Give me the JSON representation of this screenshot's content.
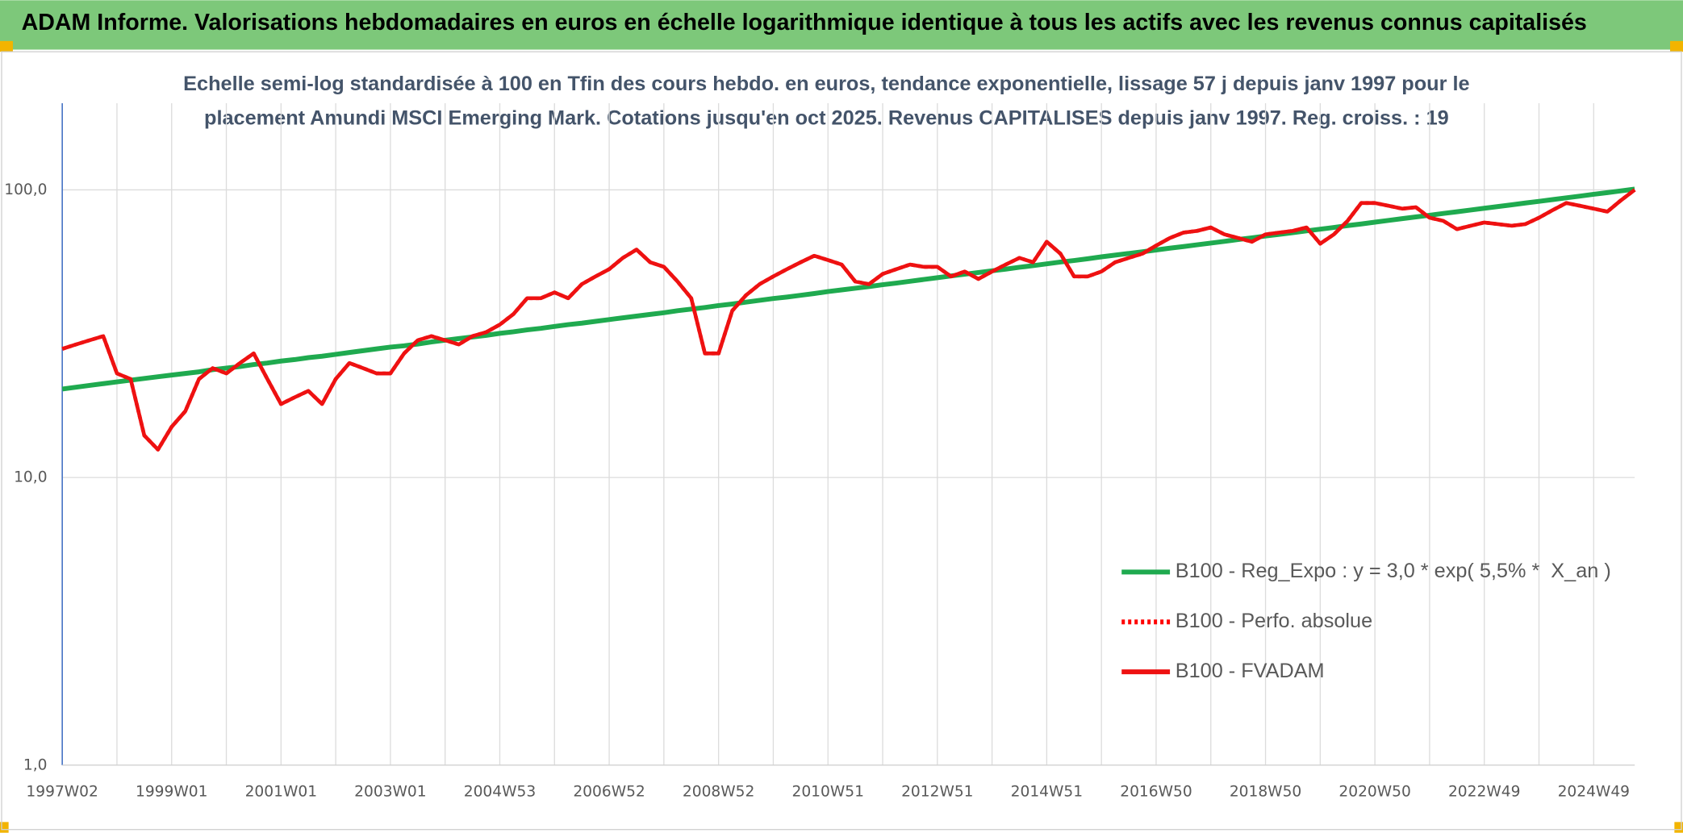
{
  "header": "ADAM Informe. Valorisations hebdomadaires en euros en échelle logarithmique identique à tous les actifs avec les revenus connus capitalisés",
  "chart_data": {
    "type": "line",
    "title": "Echelle semi-log standardisée à 100 en Tfin des cours hebdo. en euros, tendance exponentielle, lissage 57 j depuis janv 1997 pour le placement Amundi MSCI Emerging Mark. Cotations jusqu'en oct 2025. Revenus CAPITALISES depuis janv 1997. Reg. croiss. : 19",
    "log_scale": true,
    "grid": true,
    "ylim": [
      1,
      200
    ],
    "yticks": [
      {
        "value": 1,
        "label": "1,0"
      },
      {
        "value": 10,
        "label": "10,0"
      },
      {
        "value": 100,
        "label": "100,0"
      }
    ],
    "categories": [
      "1997W02",
      null,
      null,
      null,
      null,
      null,
      null,
      null,
      "1999W01",
      null,
      null,
      null,
      null,
      null,
      null,
      null,
      "2001W01",
      null,
      null,
      null,
      null,
      null,
      null,
      null,
      "2003W01",
      null,
      null,
      null,
      null,
      null,
      null,
      null,
      "2004W53",
      null,
      null,
      null,
      null,
      null,
      null,
      null,
      "2006W52",
      null,
      null,
      null,
      null,
      null,
      null,
      null,
      "2008W52",
      null,
      null,
      null,
      null,
      null,
      null,
      null,
      "2010W51",
      null,
      null,
      null,
      null,
      null,
      null,
      null,
      "2012W51",
      null,
      null,
      null,
      null,
      null,
      null,
      null,
      "2014W51",
      null,
      null,
      null,
      null,
      null,
      null,
      null,
      "2016W50",
      null,
      null,
      null,
      null,
      null,
      null,
      null,
      "2018W50",
      null,
      null,
      null,
      null,
      null,
      null,
      null,
      "2020W50",
      null,
      null,
      null,
      null,
      null,
      null,
      null,
      "2022W49",
      null,
      null,
      null,
      null,
      null,
      null,
      null,
      "2024W49",
      null,
      null,
      null
    ],
    "series": [
      {
        "name": "B100 - Reg_Expo : y = 3,0 * exp( 5,5% *  X_an )",
        "color": "#1faa4f",
        "line_style": "solid",
        "values": [
          20.3,
          20.6,
          20.9,
          21.2,
          21.5,
          21.8,
          22.1,
          22.4,
          22.7,
          23.0,
          23.3,
          23.7,
          24.0,
          24.3,
          24.7,
          25.0,
          25.4,
          25.7,
          26.1,
          26.4,
          26.8,
          27.2,
          27.6,
          28.0,
          28.4,
          28.7,
          29.1,
          29.6,
          30.0,
          30.4,
          30.8,
          31.2,
          31.7,
          32.1,
          32.6,
          33.0,
          33.5,
          34.0,
          34.4,
          34.9,
          35.4,
          35.9,
          36.4,
          36.9,
          37.4,
          38.0,
          38.5,
          39.0,
          39.6,
          40.1,
          40.7,
          41.3,
          41.9,
          42.4,
          43.0,
          43.6,
          44.3,
          44.9,
          45.5,
          46.1,
          46.8,
          47.4,
          48.1,
          48.8,
          49.5,
          50.2,
          50.9,
          51.6,
          52.3,
          53.0,
          53.8,
          54.5,
          55.3,
          56.1,
          56.8,
          57.6,
          58.5,
          59.3,
          60.1,
          60.9,
          61.8,
          62.7,
          63.5,
          64.4,
          65.3,
          66.2,
          67.2,
          68.1,
          69.1,
          70.0,
          71.0,
          72.0,
          73.0,
          74.0,
          75.1,
          76.1,
          77.2,
          78.3,
          79.4,
          80.5,
          81.6,
          82.8,
          83.9,
          85.1,
          86.3,
          87.5,
          88.7,
          90.0,
          91.2,
          92.5,
          93.8,
          95.1,
          96.5,
          97.8,
          99.2,
          100.6
        ]
      },
      {
        "name": "B100 - Perfo. absolue",
        "color": "#ff0000",
        "line_style": "dotted",
        "values": [
          28,
          29,
          30,
          31,
          23,
          22,
          14,
          12.5,
          15,
          17,
          22,
          24,
          23,
          25,
          27,
          22,
          18,
          19,
          20,
          18,
          22,
          25,
          24,
          23,
          23,
          27,
          30,
          31,
          30,
          29,
          31,
          32,
          34,
          37,
          42,
          42,
          44,
          42,
          47,
          50,
          53,
          58,
          62,
          56,
          54,
          48,
          42,
          27,
          27,
          38,
          43,
          47,
          50,
          53,
          56,
          59,
          57,
          55,
          48,
          47,
          51,
          53,
          55,
          54,
          54,
          50,
          52,
          49,
          52,
          55,
          58,
          56,
          66,
          60,
          50,
          50,
          52,
          56,
          58,
          60,
          64,
          68,
          71,
          72,
          74,
          70,
          68,
          66,
          70,
          71,
          72,
          74,
          65,
          70,
          78,
          90,
          90,
          88,
          86,
          87,
          80,
          78,
          73,
          75,
          77,
          76,
          75,
          76,
          80,
          85,
          90,
          88,
          86,
          84,
          92,
          100
        ]
      },
      {
        "name": "B100 - FVADAM",
        "color": "#ee1111",
        "line_style": "solid",
        "values": [
          28,
          29,
          30,
          31,
          23,
          22,
          14,
          12.5,
          15,
          17,
          22,
          24,
          23,
          25,
          27,
          22,
          18,
          19,
          20,
          18,
          22,
          25,
          24,
          23,
          23,
          27,
          30,
          31,
          30,
          29,
          31,
          32,
          34,
          37,
          42,
          42,
          44,
          42,
          47,
          50,
          53,
          58,
          62,
          56,
          54,
          48,
          42,
          27,
          27,
          38,
          43,
          47,
          50,
          53,
          56,
          59,
          57,
          55,
          48,
          47,
          51,
          53,
          55,
          54,
          54,
          50,
          52,
          49,
          52,
          55,
          58,
          56,
          66,
          60,
          50,
          50,
          52,
          56,
          58,
          60,
          64,
          68,
          71,
          72,
          74,
          70,
          68,
          66,
          70,
          71,
          72,
          74,
          65,
          70,
          78,
          90,
          90,
          88,
          86,
          87,
          80,
          78,
          73,
          75,
          77,
          76,
          75,
          76,
          80,
          85,
          90,
          88,
          86,
          84,
          92,
          100
        ]
      }
    ]
  }
}
